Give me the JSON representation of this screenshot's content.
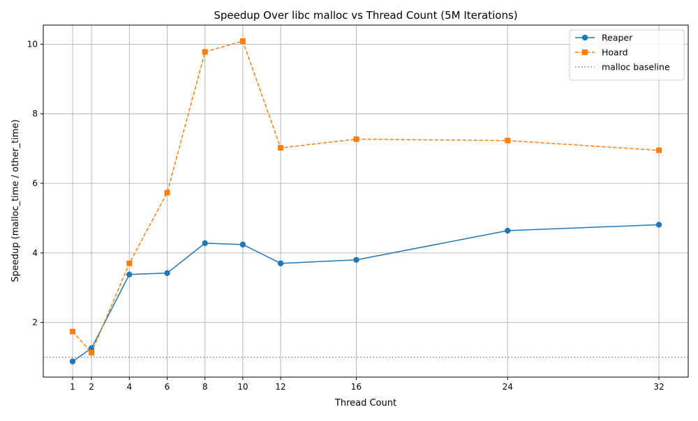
{
  "chart_data": {
    "type": "line",
    "title": "Speedup Over libc malloc vs Thread Count (5M Iterations)",
    "xlabel": "Thread Count",
    "ylabel": "Speedup (malloc_time / other_time)",
    "x": [
      1,
      2,
      4,
      6,
      8,
      10,
      12,
      16,
      24,
      32
    ],
    "x_ticks": [
      "1",
      "2",
      "4",
      "6",
      "8",
      "10",
      "12",
      "16",
      "24",
      "32"
    ],
    "y_ticks": [
      "2",
      "4",
      "6",
      "8",
      "10"
    ],
    "xlim": [
      -0.55,
      33.55
    ],
    "ylim": [
      0.43,
      10.55
    ],
    "grid": true,
    "legend_position": "top-right",
    "series": [
      {
        "name": "Reaper",
        "color": "#1f77b4",
        "marker": "circle",
        "linestyle": "solid",
        "values": [
          0.88,
          1.26,
          3.38,
          3.42,
          4.28,
          4.24,
          3.7,
          3.8,
          4.64,
          4.81
        ]
      },
      {
        "name": "Hoard",
        "color": "#ff7f0e",
        "marker": "square",
        "linestyle": "dashed",
        "values": [
          1.74,
          1.13,
          3.7,
          5.73,
          9.78,
          10.09,
          7.02,
          7.27,
          7.23,
          6.95
        ]
      }
    ],
    "reference_lines": [
      {
        "name": "malloc baseline",
        "y": 1.0,
        "color": "#808080",
        "linestyle": "dotted"
      }
    ]
  }
}
